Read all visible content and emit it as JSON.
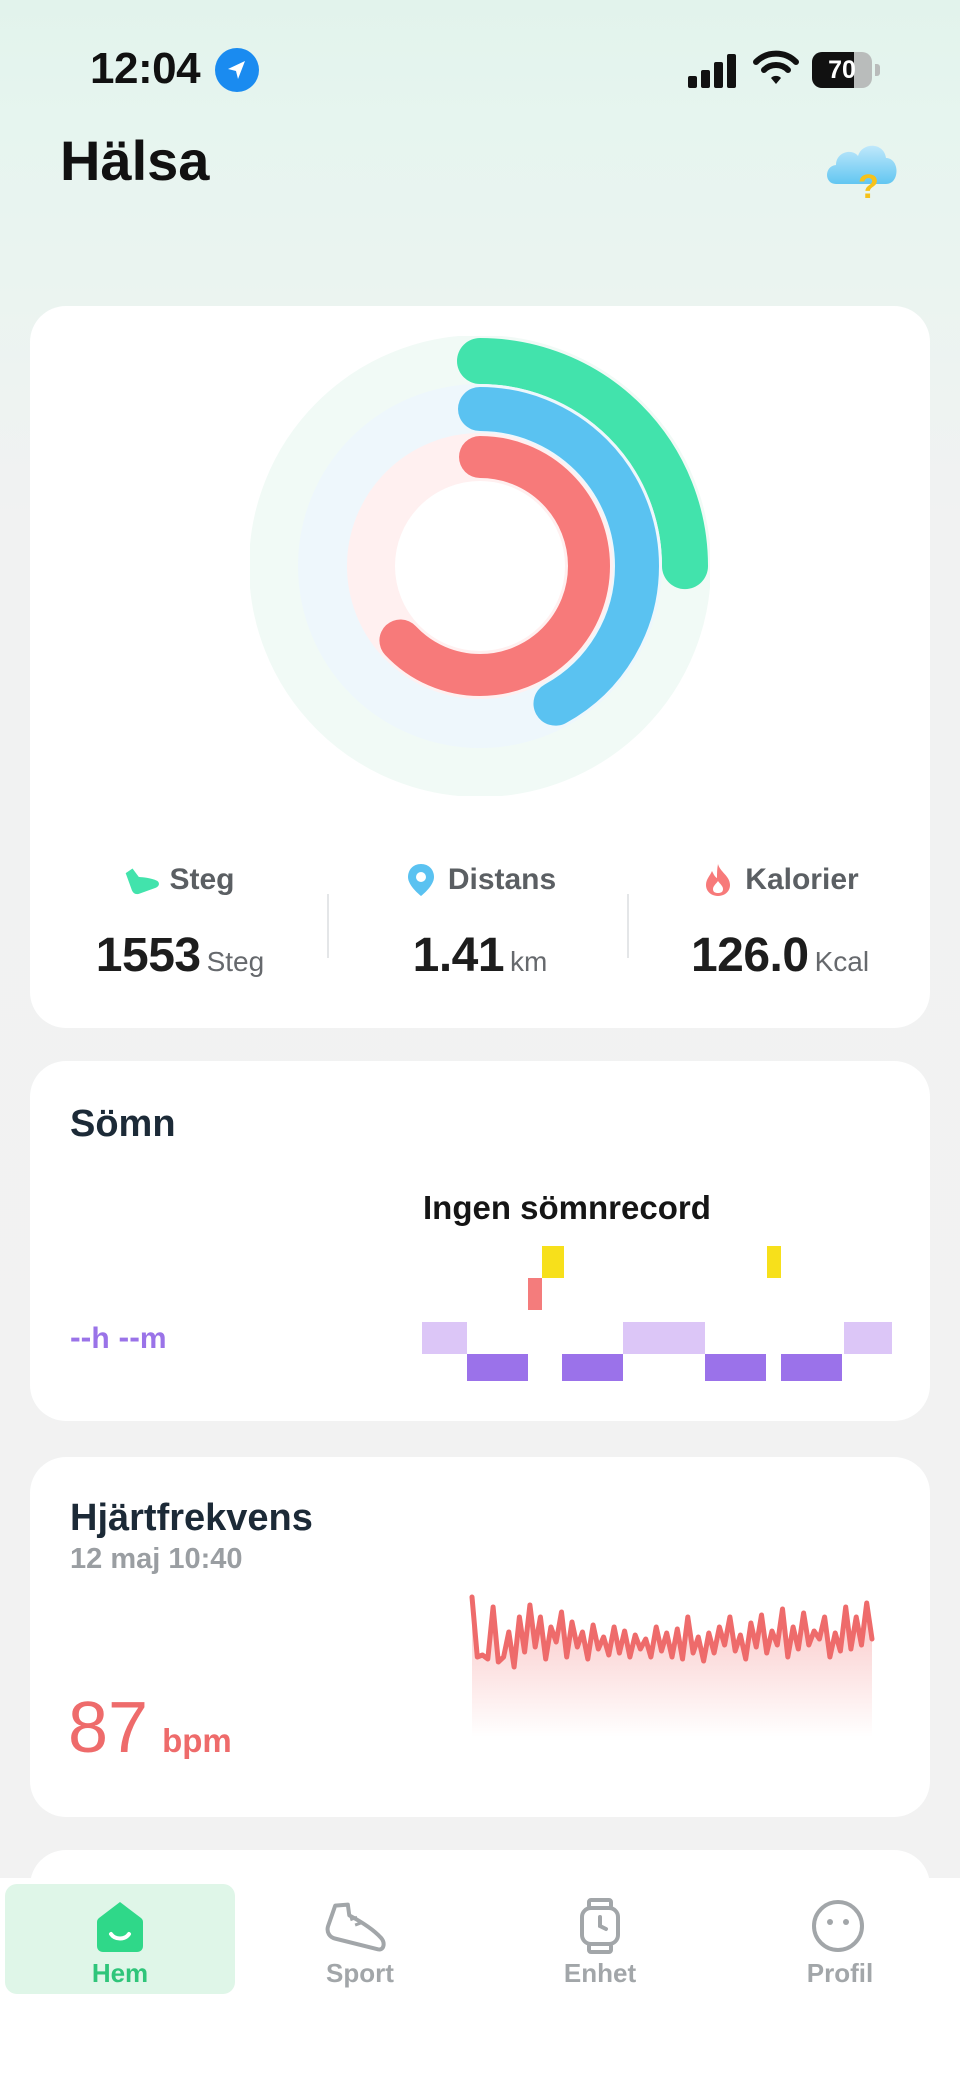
{
  "status_bar": {
    "time": "12:04",
    "battery": "70",
    "battery_level": 0.7
  },
  "header": {
    "title": "Hälsa"
  },
  "activity": {
    "rings": [
      {
        "name": "steps",
        "progress": 0.25,
        "color": "#42e3ac",
        "track": "#f1faf6"
      },
      {
        "name": "distance",
        "progress": 0.42,
        "color": "#5ac2f1",
        "track": "#eef7fc"
      },
      {
        "name": "calories",
        "progress": 0.63,
        "color": "#f77a7a",
        "track": "#fff0f0"
      }
    ],
    "stats": [
      {
        "label": "Steg",
        "value": "1553",
        "unit": "Steg",
        "icon": "shoe-icon",
        "icon_color": "#42e3ac"
      },
      {
        "label": "Distans",
        "value": "1.41",
        "unit": "km",
        "icon": "location-pin-icon",
        "icon_color": "#5ac2f1"
      },
      {
        "label": "Kalorier",
        "value": "126.0",
        "unit": "Kcal",
        "icon": "flame-icon",
        "icon_color": "#f77a7a"
      }
    ]
  },
  "sleep": {
    "title": "Sömn",
    "empty_text": "Ingen sömnrecord",
    "hours": "--",
    "hours_unit": "h",
    "minutes": "--",
    "minutes_unit": "m",
    "stage_colors": {
      "light": "#dcc6f7",
      "deep": "#9b72ea",
      "rem": "#f47c7c",
      "awake": "#f7e01b"
    }
  },
  "heart_rate": {
    "title": "Hjärtfrekvens",
    "timestamp": "12 maj 10:40",
    "value": "87",
    "unit": "bpm",
    "color": "#ee6b6b"
  },
  "tab_bar": {
    "tabs": [
      {
        "label": "Hem",
        "icon": "home-icon",
        "active": true
      },
      {
        "label": "Sport",
        "icon": "sneaker-icon",
        "active": false
      },
      {
        "label": "Enhet",
        "icon": "smartwatch-icon",
        "active": false
      },
      {
        "label": "Profil",
        "icon": "profile-face-icon",
        "active": false
      }
    ],
    "active_color": "#2fc57a",
    "inactive_color": "#a2a6a9"
  }
}
